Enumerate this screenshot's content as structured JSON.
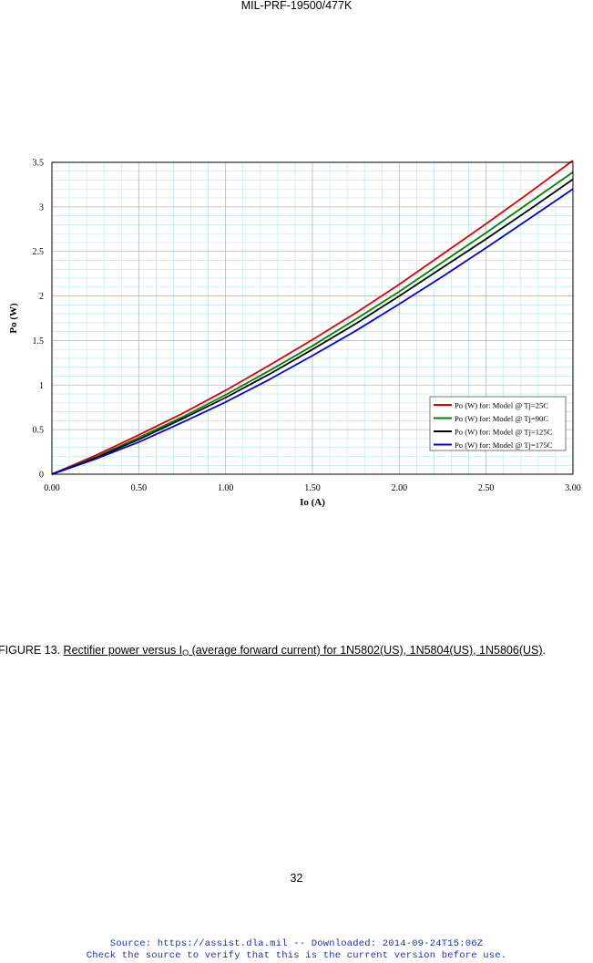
{
  "header": {
    "doc_id": "MIL-PRF-19500/477K"
  },
  "chart_data": {
    "type": "line",
    "xlabel": "Io (A)",
    "ylabel": "Po (W)",
    "xlim": [
      0,
      3
    ],
    "ylim": [
      0,
      3.5
    ],
    "x_ticks": [
      "0.00",
      "0.50",
      "1.00",
      "1.50",
      "2.00",
      "2.50",
      "3.00"
    ],
    "y_ticks": [
      "0",
      "0.5",
      "1",
      "1.5",
      "2",
      "2.5",
      "3",
      "3.5"
    ],
    "grid": true,
    "legend_position": "bottom-right",
    "x": [
      0,
      0.25,
      0.5,
      0.75,
      1.0,
      1.25,
      1.5,
      1.75,
      2.0,
      2.25,
      2.5,
      2.75,
      3.0
    ],
    "series": [
      {
        "name": "Po (W) for: Model @ Tj=25C",
        "color": "#e00000",
        "values": [
          0,
          0.21,
          0.44,
          0.68,
          0.94,
          1.22,
          1.51,
          1.81,
          2.13,
          2.47,
          2.81,
          3.16,
          3.52
        ]
      },
      {
        "name": "Po (W) for: Model @ Tj=90C",
        "color": "#008000",
        "values": [
          0,
          0.19,
          0.41,
          0.64,
          0.89,
          1.16,
          1.44,
          1.74,
          2.05,
          2.38,
          2.71,
          3.05,
          3.39
        ]
      },
      {
        "name": "Po (W) for: Model @ Tj=125C",
        "color": "#000000",
        "values": [
          0,
          0.18,
          0.39,
          0.62,
          0.86,
          1.12,
          1.4,
          1.69,
          2.0,
          2.32,
          2.64,
          2.97,
          3.31
        ]
      },
      {
        "name": "Po (W) for: Model @ Tj=175C",
        "color": "#0000dd",
        "values": [
          0,
          0.17,
          0.36,
          0.58,
          0.81,
          1.06,
          1.33,
          1.61,
          1.91,
          2.22,
          2.54,
          2.87,
          3.2
        ]
      }
    ]
  },
  "caption": {
    "prefix": "FIGURE 13.  ",
    "text_a": "Rectifier power versus I",
    "sub": "O",
    "text_b": " (average forward current) for 1N5802(US), 1N5804(US), 1N5806(US)",
    "suffix": "."
  },
  "page_number": "32",
  "footer": {
    "line1": "Source: https://assist.dla.mil -- Downloaded: 2014-09-24T15:06Z",
    "line2": "Check the source to verify that this is the current version before use."
  }
}
